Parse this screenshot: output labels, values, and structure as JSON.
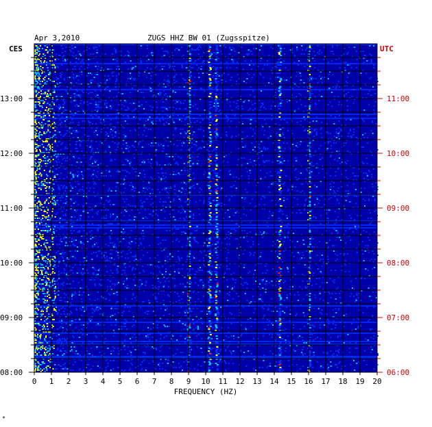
{
  "header": {
    "date": "Apr 3,2010",
    "station": "ZUGS HHZ BW 01 (Zugsspitze)",
    "left_tz": "CES",
    "right_tz": "UTC"
  },
  "footer_mark": "*",
  "chart_data": {
    "type": "heatmap",
    "title": "ZUGS HHZ BW 01 (Zugsspitze)",
    "xlabel": "FREQUENCY (HZ)",
    "ylabel": "",
    "xlim": [
      0,
      20
    ],
    "x_ticks": [
      "0",
      "1",
      "2",
      "3",
      "4",
      "5",
      "6",
      "7",
      "8",
      "9",
      "10",
      "11",
      "12",
      "13",
      "14",
      "15",
      "16",
      "17",
      "18",
      "19",
      "20"
    ],
    "left_time_labels": [
      "08:00",
      "09:00",
      "10:00",
      "11:00",
      "12:00",
      "13:00"
    ],
    "right_time_labels": [
      "06:00",
      "07:00",
      "08:00",
      "09:00",
      "10:00",
      "11:00"
    ],
    "grid": true,
    "background_color": "#0000a8",
    "colormap": [
      "#000090",
      "#0030ff",
      "#00c8ff",
      "#ffff00",
      "#ff2000"
    ],
    "dominant_frequency_bands_hz": [
      9.0,
      10.2,
      10.6,
      14.3,
      16.0
    ]
  }
}
